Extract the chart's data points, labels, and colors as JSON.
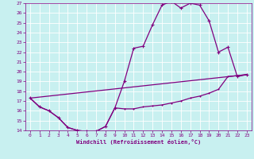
{
  "xlabel": "Windchill (Refroidissement éolien,°C)",
  "bg_color": "#c8f0f0",
  "line_color": "#800080",
  "grid_color": "#ffffff",
  "xlim": [
    -0.5,
    23.5
  ],
  "ylim": [
    14,
    27
  ],
  "xticks": [
    0,
    1,
    2,
    3,
    4,
    5,
    6,
    7,
    8,
    9,
    10,
    11,
    12,
    13,
    14,
    15,
    16,
    17,
    18,
    19,
    20,
    21,
    22,
    23
  ],
  "yticks": [
    14,
    15,
    16,
    17,
    18,
    19,
    20,
    21,
    22,
    23,
    24,
    25,
    26,
    27
  ],
  "curve1_x": [
    0,
    1,
    2,
    3,
    4,
    5,
    6,
    7,
    8,
    9,
    10,
    11,
    12,
    13,
    14,
    15,
    16,
    17,
    18,
    19,
    20,
    21,
    22,
    23
  ],
  "curve1_y": [
    17.3,
    16.4,
    16.0,
    15.3,
    14.3,
    14.0,
    13.9,
    13.9,
    14.4,
    16.3,
    16.2,
    16.2,
    16.4,
    16.5,
    16.6,
    16.8,
    17.0,
    17.3,
    17.5,
    17.8,
    18.2,
    19.5,
    19.6,
    19.7
  ],
  "curve2_x": [
    0,
    1,
    2,
    3,
    4,
    5,
    6,
    7,
    8,
    9,
    10,
    11,
    12,
    13,
    14,
    15,
    16,
    17,
    18,
    19,
    20,
    21,
    22,
    23
  ],
  "curve2_y": [
    17.3,
    16.4,
    16.0,
    15.3,
    14.3,
    14.0,
    13.9,
    13.9,
    14.4,
    16.3,
    19.0,
    22.4,
    22.6,
    24.8,
    26.8,
    27.2,
    26.5,
    27.0,
    26.8,
    25.2,
    22.0,
    22.5,
    19.5,
    19.7
  ],
  "curve3_x": [
    0,
    23
  ],
  "curve3_y": [
    17.3,
    19.7
  ]
}
